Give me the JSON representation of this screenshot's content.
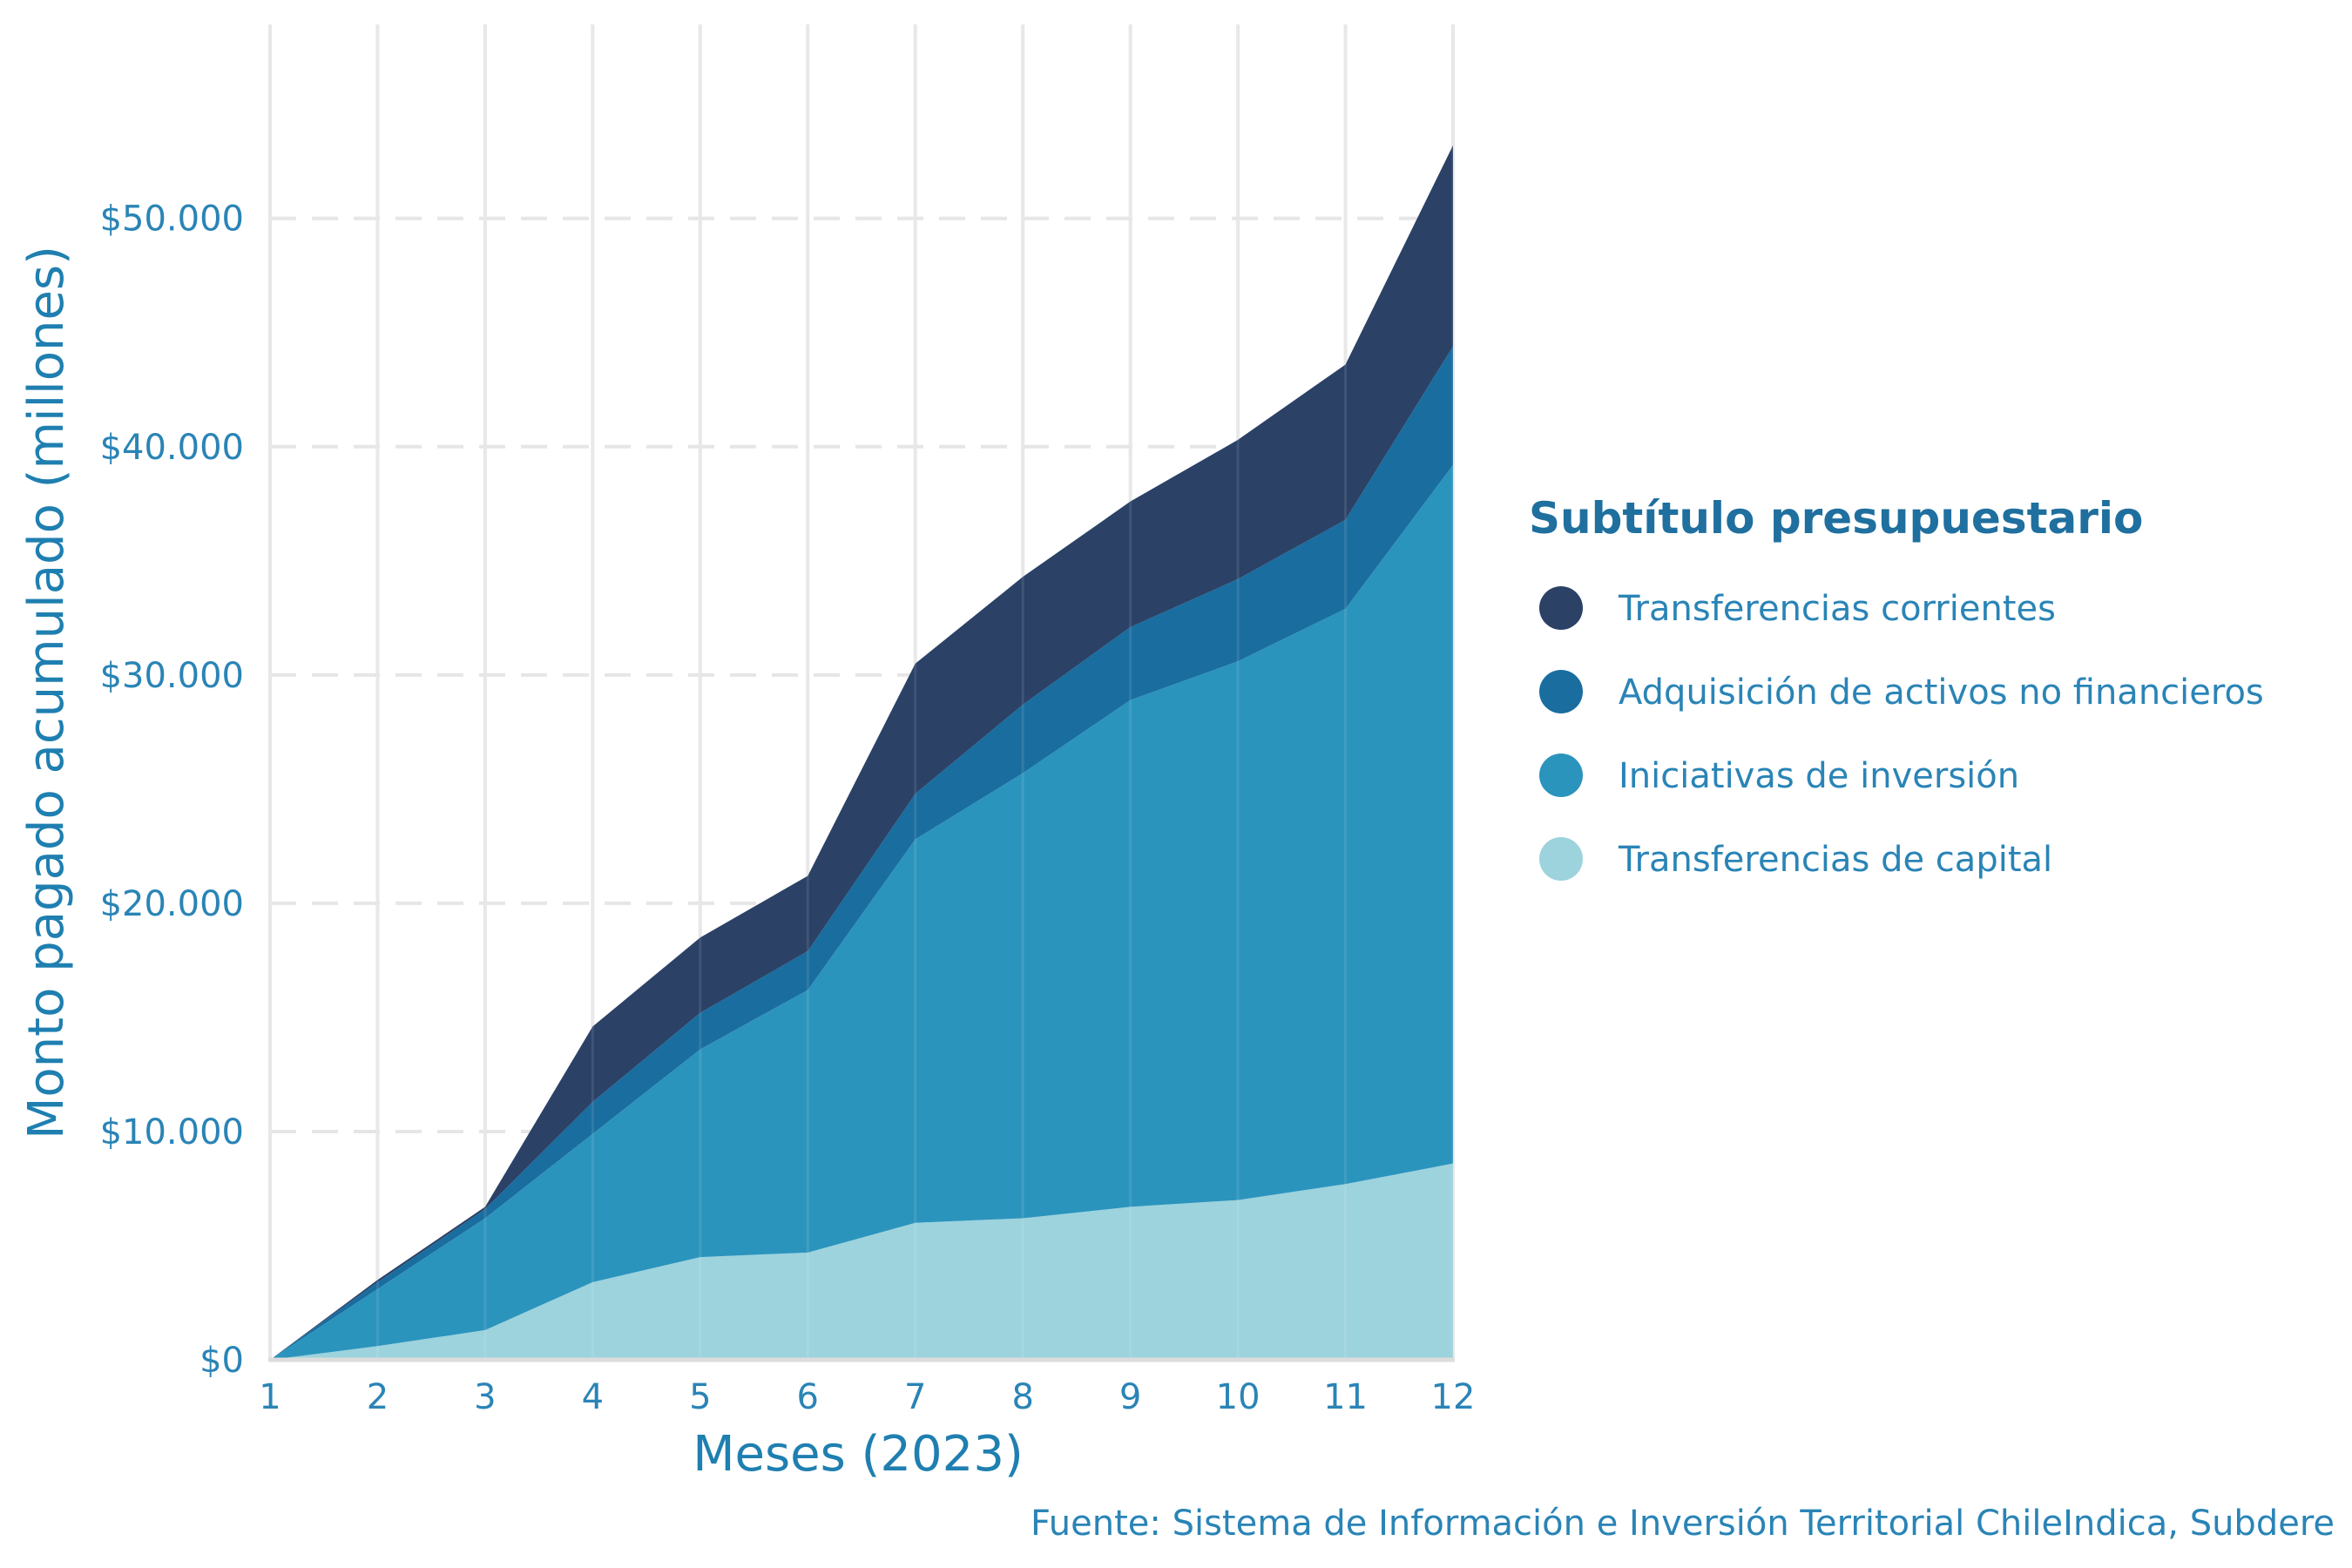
{
  "chart_data": {
    "type": "area",
    "stacked": true,
    "x": [
      1,
      2,
      3,
      4,
      5,
      6,
      7,
      8,
      9,
      10,
      11,
      12
    ],
    "xlim": [
      1,
      12
    ],
    "ylim": [
      0,
      58500
    ],
    "yticks": [
      0,
      10000,
      20000,
      30000,
      40000,
      50000
    ],
    "ytick_labels": [
      "$0",
      "$10.000",
      "$20.000",
      "$30.000",
      "$40.000",
      "$50.000"
    ],
    "xtick_labels": [
      "1",
      "2",
      "3",
      "4",
      "5",
      "6",
      "7",
      "8",
      "9",
      "10",
      "11",
      "12"
    ],
    "xlabel": "Meses (2023)",
    "ylabel": "Monto pagado acumulado (millones)",
    "grid": true,
    "legend_title": "Subtítulo presupuestario",
    "legend_position": "right",
    "caption": "Fuente: Sistema de Información e Inversión Territorial ChileIndica, Subdere",
    "series": [
      {
        "name": "Transferencias de capital",
        "color": "#9cd3dd",
        "values": [
          0,
          600,
          1300,
          3400,
          4500,
          4700,
          6000,
          6200,
          6700,
          7000,
          7700,
          8600
        ]
      },
      {
        "name": "Iniciativas de inversión",
        "color": "#2b94bd",
        "values": [
          0,
          2500,
          4900,
          6500,
          9100,
          11500,
          16800,
          19500,
          22200,
          23600,
          25200,
          30600
        ]
      },
      {
        "name": "Adquisición de activos no financieros",
        "color": "#1a6d9f",
        "values": [
          0,
          300,
          400,
          1400,
          1600,
          1700,
          2000,
          3000,
          3200,
          3600,
          3900,
          5200
        ]
      },
      {
        "name": "Transferencias corrientes",
        "color": "#2b4166",
        "values": [
          0,
          100,
          100,
          3300,
          3300,
          3300,
          5700,
          5600,
          5500,
          6100,
          6800,
          8800
        ]
      }
    ],
    "legend_order": [
      "Transferencias corrientes",
      "Adquisición de activos no financieros",
      "Iniciativas de inversión",
      "Transferencias de capital"
    ]
  },
  "style": {
    "grid_color": "#e6e6e6",
    "axis_line_color": "#dcdcdc",
    "text_color": "#2a84b6"
  }
}
